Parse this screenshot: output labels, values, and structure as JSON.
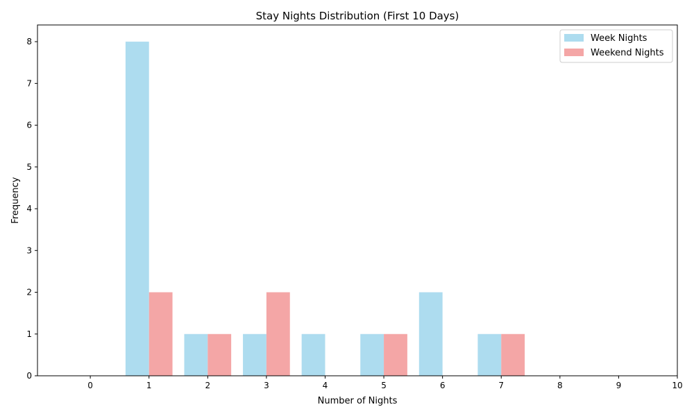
{
  "chart_data": {
    "type": "bar",
    "title": "Stay Nights Distribution (First 10 Days)",
    "xlabel": "Number of Nights",
    "ylabel": "Frequency",
    "x": [
      0,
      1,
      2,
      3,
      4,
      5,
      6,
      7,
      8,
      9,
      10
    ],
    "xticks": [
      "0",
      "1",
      "2",
      "3",
      "4",
      "5",
      "6",
      "7",
      "8",
      "9",
      "10"
    ],
    "yticks": [
      "0",
      "1",
      "2",
      "3",
      "4",
      "5",
      "6",
      "7",
      "8"
    ],
    "xlim": [
      -0.9,
      10
    ],
    "ylim": [
      0,
      8.4
    ],
    "grid": false,
    "legend_position": "top-right",
    "series": [
      {
        "name": "Week Nights",
        "color": "#ADDCEF",
        "values": [
          0,
          8,
          1,
          1,
          1,
          1,
          2,
          1,
          0,
          0,
          0
        ]
      },
      {
        "name": "Weekend Nights",
        "color": "#F4A6A6",
        "values": [
          0,
          2,
          1,
          2,
          0,
          1,
          0,
          1,
          0,
          0,
          0
        ]
      }
    ]
  }
}
